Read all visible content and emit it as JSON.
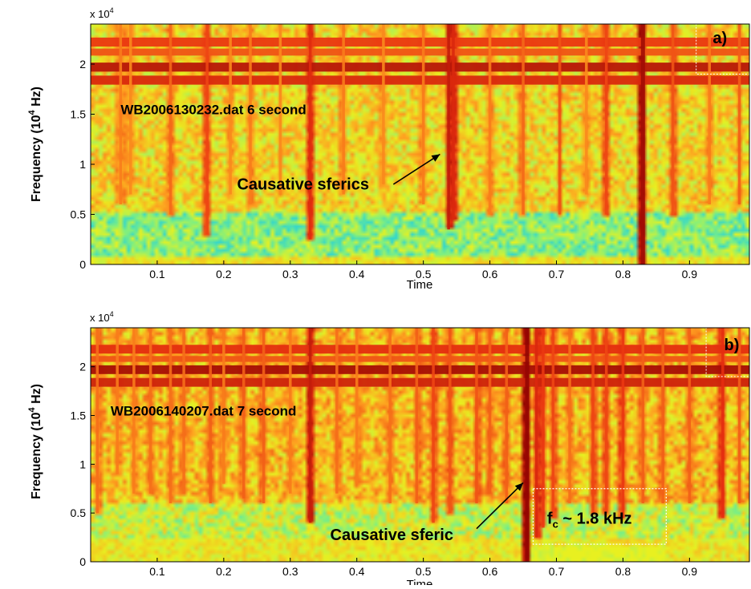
{
  "chart_data": [
    {
      "type": "heatmap",
      "panel_label": "a)",
      "annotation_file": "WB2006130232.dat  6 second",
      "annotation_arrow": "Causative sferics",
      "xlabel": "Time",
      "ylabel": "Frequency (10^4 Hz)",
      "ylabel_parts": {
        "main": "Frequency (10",
        "sup": "4",
        "tail": " Hz)"
      },
      "y_multiplier": {
        "base": "x 10",
        "exp": "4"
      },
      "xlim": [
        0,
        0.99
      ],
      "ylim": [
        0,
        24000
      ],
      "x_ticks": [
        0.1,
        0.2,
        0.3,
        0.4,
        0.5,
        0.6,
        0.7,
        0.8,
        0.9
      ],
      "x_tick_labels": [
        "0.1",
        "0.2",
        "0.3",
        "0.4",
        "0.5",
        "0.6",
        "0.7",
        "0.8",
        "0.9"
      ],
      "y_ticks": [
        0,
        5000,
        10000,
        15000,
        20000
      ],
      "y_tick_labels": [
        "0",
        "0.5",
        "1",
        "1.5",
        "2"
      ],
      "colormap": [
        "#1e90ff",
        "#20d0e0",
        "#80f080",
        "#e8f020",
        "#ffa020",
        "#e83010",
        "#8a0000"
      ],
      "background_level": 0.55,
      "low_freq_band": {
        "f_min": 1000,
        "f_max": 5000,
        "level": 0.35
      },
      "horizontal_lines": [
        {
          "freq": 22200,
          "width": 900,
          "level": 0.82
        },
        {
          "freq": 21200,
          "width": 700,
          "level": 0.78
        },
        {
          "freq": 19700,
          "width": 900,
          "level": 0.92
        },
        {
          "freq": 18400,
          "width": 900,
          "level": 0.86
        }
      ],
      "sferics": [
        {
          "t": 0.045,
          "f_min": 6000,
          "level": 0.72
        },
        {
          "t": 0.06,
          "f_min": 7000,
          "level": 0.7
        },
        {
          "t": 0.12,
          "f_min": 5000,
          "level": 0.75
        },
        {
          "t": 0.175,
          "f_min": 3000,
          "level": 0.8
        },
        {
          "t": 0.21,
          "f_min": 7000,
          "level": 0.7
        },
        {
          "t": 0.24,
          "f_min": 6000,
          "level": 0.72
        },
        {
          "t": 0.285,
          "f_min": 7000,
          "level": 0.7
        },
        {
          "t": 0.33,
          "f_min": 2500,
          "level": 0.85
        },
        {
          "t": 0.38,
          "f_min": 7000,
          "level": 0.72
        },
        {
          "t": 0.44,
          "f_min": 8000,
          "level": 0.7
        },
        {
          "t": 0.5,
          "f_min": 6000,
          "level": 0.72
        },
        {
          "t": 0.538,
          "f_min": 3500,
          "level": 0.9
        },
        {
          "t": 0.545,
          "f_min": 4500,
          "level": 0.86
        },
        {
          "t": 0.6,
          "f_min": 5000,
          "level": 0.72
        },
        {
          "t": 0.65,
          "f_min": 5000,
          "level": 0.75
        },
        {
          "t": 0.705,
          "f_min": 5000,
          "level": 0.78
        },
        {
          "t": 0.745,
          "f_min": 7000,
          "level": 0.7
        },
        {
          "t": 0.775,
          "f_min": 5000,
          "level": 0.8
        },
        {
          "t": 0.83,
          "f_min": 0,
          "level": 0.96
        },
        {
          "t": 0.875,
          "f_min": 5000,
          "level": 0.78
        },
        {
          "t": 0.93,
          "f_min": 6000,
          "level": 0.72
        },
        {
          "t": 0.975,
          "f_min": 6000,
          "level": 0.76
        }
      ],
      "dotted_box": {
        "t_min": 0.91,
        "t_max": 0.99,
        "f_min": 19000,
        "f_max": 24000
      },
      "arrow": {
        "text_t": 0.22,
        "text_f": 7500,
        "from_t": 0.455,
        "from_f": 8000,
        "to_t": 0.525,
        "to_f": 11000
      },
      "panel_label_pos": {
        "t": 0.935,
        "f": 22100
      },
      "file_label_pos": {
        "t": 0.045,
        "f": 15000
      }
    },
    {
      "type": "heatmap",
      "panel_label": "b)",
      "annotation_file": "WB2006140207.dat  7 second",
      "annotation_arrow": "Causative sferic",
      "annotation_cutoff": {
        "main": "f",
        "sub": "c",
        "tail": " ~ 1.8 kHz"
      },
      "xlabel": "Time",
      "ylabel": "Frequency (10^4 Hz)",
      "ylabel_parts": {
        "main": "Frequency (10",
        "sup": "4",
        "tail": " Hz)"
      },
      "y_multiplier": {
        "base": "x 10",
        "exp": "4"
      },
      "xlim": [
        0,
        0.99
      ],
      "ylim": [
        0,
        24000
      ],
      "x_ticks": [
        0.1,
        0.2,
        0.3,
        0.4,
        0.5,
        0.6,
        0.7,
        0.8,
        0.9
      ],
      "x_tick_labels": [
        "0.1",
        "0.2",
        "0.3",
        "0.4",
        "0.5",
        "0.6",
        "0.7",
        "0.8",
        "0.9"
      ],
      "y_ticks": [
        0,
        5000,
        10000,
        15000,
        20000
      ],
      "y_tick_labels": [
        "0",
        "0.5",
        "1",
        "1.5",
        "2"
      ],
      "colormap": [
        "#1e90ff",
        "#20d0e0",
        "#80f080",
        "#e8f020",
        "#ffa020",
        "#e83010",
        "#8a0000"
      ],
      "background_level": 0.6,
      "low_freq_band": {
        "f_min": 2500,
        "f_max": 6000,
        "level": 0.45
      },
      "horizontal_lines": [
        {
          "freq": 21800,
          "width": 900,
          "level": 0.84
        },
        {
          "freq": 20800,
          "width": 600,
          "level": 0.78
        },
        {
          "freq": 19700,
          "width": 900,
          "level": 0.95
        },
        {
          "freq": 18400,
          "width": 900,
          "level": 0.88
        }
      ],
      "sferics": [
        {
          "t": 0.01,
          "f_min": 5000,
          "level": 0.74
        },
        {
          "t": 0.04,
          "f_min": 9000,
          "level": 0.72
        },
        {
          "t": 0.065,
          "f_min": 7000,
          "level": 0.72
        },
        {
          "t": 0.09,
          "f_min": 7000,
          "level": 0.74
        },
        {
          "t": 0.12,
          "f_min": 6000,
          "level": 0.74
        },
        {
          "t": 0.14,
          "f_min": 7000,
          "level": 0.74
        },
        {
          "t": 0.18,
          "f_min": 6000,
          "level": 0.76
        },
        {
          "t": 0.2,
          "f_min": 8000,
          "level": 0.72
        },
        {
          "t": 0.23,
          "f_min": 6500,
          "level": 0.76
        },
        {
          "t": 0.26,
          "f_min": 6000,
          "level": 0.76
        },
        {
          "t": 0.3,
          "f_min": 7000,
          "level": 0.72
        },
        {
          "t": 0.33,
          "f_min": 4000,
          "level": 0.9
        },
        {
          "t": 0.37,
          "f_min": 7000,
          "level": 0.74
        },
        {
          "t": 0.4,
          "f_min": 8000,
          "level": 0.72
        },
        {
          "t": 0.45,
          "f_min": 6000,
          "level": 0.74
        },
        {
          "t": 0.49,
          "f_min": 6000,
          "level": 0.76
        },
        {
          "t": 0.515,
          "f_min": 4000,
          "level": 0.8
        },
        {
          "t": 0.54,
          "f_min": 5000,
          "level": 0.78
        },
        {
          "t": 0.58,
          "f_min": 6000,
          "level": 0.78
        },
        {
          "t": 0.6,
          "f_min": 7000,
          "level": 0.76
        },
        {
          "t": 0.625,
          "f_min": 6000,
          "level": 0.76
        },
        {
          "t": 0.656,
          "f_min": 0,
          "level": 0.98
        },
        {
          "t": 0.67,
          "f_min": 2500,
          "level": 0.86
        },
        {
          "t": 0.68,
          "f_min": 3500,
          "level": 0.82
        },
        {
          "t": 0.695,
          "f_min": 4500,
          "level": 0.8
        },
        {
          "t": 0.72,
          "f_min": 6000,
          "level": 0.74
        },
        {
          "t": 0.755,
          "f_min": 5000,
          "level": 0.8
        },
        {
          "t": 0.775,
          "f_min": 5000,
          "level": 0.8
        },
        {
          "t": 0.8,
          "f_min": 4500,
          "level": 0.82
        },
        {
          "t": 0.83,
          "f_min": 6000,
          "level": 0.76
        },
        {
          "t": 0.86,
          "f_min": 6000,
          "level": 0.76
        },
        {
          "t": 0.9,
          "f_min": 6000,
          "level": 0.76
        },
        {
          "t": 0.95,
          "f_min": 4500,
          "level": 0.84
        },
        {
          "t": 0.975,
          "f_min": 6000,
          "level": 0.76
        }
      ],
      "dotted_box": {
        "t_min": 0.925,
        "t_max": 0.99,
        "f_min": 19000,
        "f_max": 24000
      },
      "cutoff_box": {
        "t_min": 0.665,
        "t_max": 0.865,
        "f_min": 1800,
        "f_max": 7500
      },
      "arrow": {
        "text_t": 0.36,
        "text_f": 2200,
        "from_t": 0.58,
        "from_f": 3400,
        "to_t": 0.65,
        "to_f": 8100
      },
      "panel_label_pos": {
        "t": 0.952,
        "f": 21700
      },
      "file_label_pos": {
        "t": 0.03,
        "f": 15000
      },
      "cutoff_label_pos": {
        "t": 0.686,
        "f": 3900
      }
    }
  ]
}
